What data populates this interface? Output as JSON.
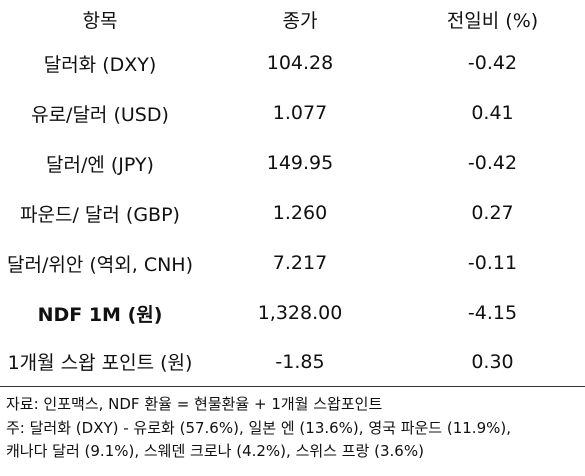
{
  "table": {
    "headers": {
      "item": "항목",
      "close": "종가",
      "change": "전일비 (%)"
    },
    "rows": [
      {
        "item": "달러화 (DXY)",
        "close": "104.28",
        "change": "-0.42",
        "bold": false
      },
      {
        "item": "유로/달러 (USD)",
        "close": "1.077",
        "change": "0.41",
        "bold": false
      },
      {
        "item": "달러/엔 (JPY)",
        "close": "149.95",
        "change": "-0.42",
        "bold": false
      },
      {
        "item": "파운드/ 달러 (GBP)",
        "close": "1.260",
        "change": "0.27",
        "bold": false
      },
      {
        "item": "달러/위안 (역외, CNH)",
        "close": "7.217",
        "change": "-0.11",
        "bold": false
      },
      {
        "item": "NDF 1M (원)",
        "close": "1,328.00",
        "change": "-4.15",
        "bold": true
      },
      {
        "item": "1개월 스왑 포인트 (원)",
        "close": "-1.85",
        "change": "0.30",
        "bold": false
      }
    ]
  },
  "notes": {
    "source": "자료: 인포맥스, NDF 환율 = 현물환율 + 1개월 스왑포인트",
    "note_line1": "주: 달러화 (DXY) - 유로화 (57.6%), 일본 엔 (13.6%), 영국 파운드 (11.9%),",
    "note_line2": "캐나다 달러 (9.1%), 스웨덴 크로나 (4.2%), 스위스 프랑 (3.6%)"
  }
}
